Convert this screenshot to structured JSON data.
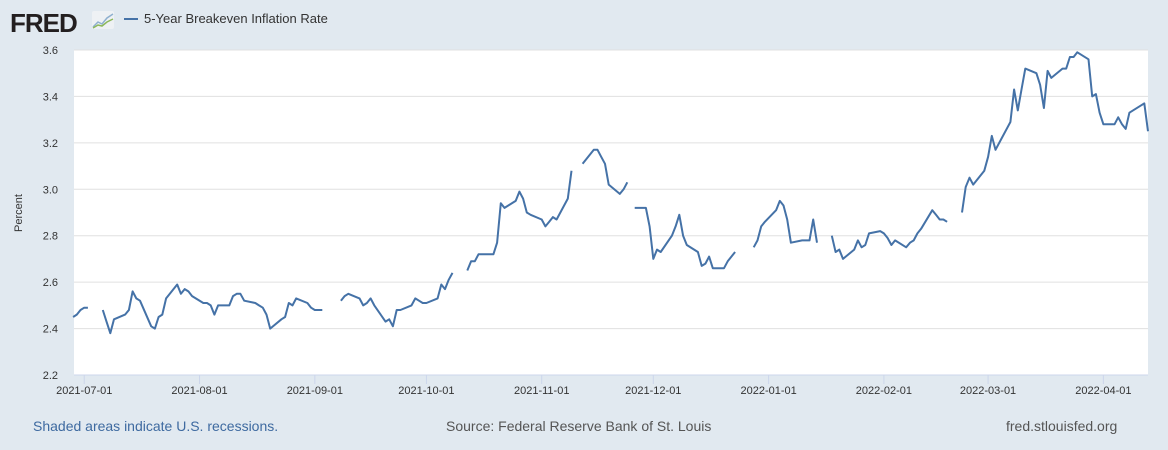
{
  "brand": {
    "logo_text": "FRED"
  },
  "footer": {
    "recessions_note": "Shaded areas indicate U.S. recessions.",
    "source": "Source: Federal Reserve Bank of St. Louis",
    "site": "fred.stlouisfed.org"
  },
  "colors": {
    "series": "#4572a7",
    "background": "#e1e9f0",
    "plot": "#ffffff",
    "grid": "#e0e0e0"
  },
  "chart_data": {
    "type": "line",
    "title": "",
    "xlabel": "",
    "ylabel": "Percent",
    "ylim": [
      2.2,
      3.6
    ],
    "xlim": [
      "2021-06-28T06:00:00",
      "2022-04-13T00:00:00"
    ],
    "yticks": [
      "2.2",
      "2.4",
      "2.6",
      "2.8",
      "3.0",
      "3.2",
      "3.4",
      "3.6"
    ],
    "xticks": [
      "2021-07-01",
      "2021-08-01",
      "2021-09-01",
      "2021-10-01",
      "2021-11-01",
      "2021-12-01",
      "2022-01-01",
      "2022-02-01",
      "2022-03-01",
      "2022-04-01"
    ],
    "grid": true,
    "legend_position": "top-left",
    "series": [
      {
        "name": "5-Year Breakeven Inflation Rate",
        "points": [
          [
            "2021-06-28",
            2.45
          ],
          [
            "2021-06-29",
            2.46
          ],
          [
            "2021-06-30",
            2.48
          ],
          [
            "2021-07-01",
            2.49
          ],
          [
            "2021-07-02",
            2.49
          ],
          [
            "2021-07-05",
            null
          ],
          [
            "2021-07-06",
            2.48
          ],
          [
            "2021-07-07",
            2.43
          ],
          [
            "2021-07-08",
            2.38
          ],
          [
            "2021-07-09",
            2.44
          ],
          [
            "2021-07-12",
            2.46
          ],
          [
            "2021-07-13",
            2.48
          ],
          [
            "2021-07-14",
            2.56
          ],
          [
            "2021-07-15",
            2.53
          ],
          [
            "2021-07-16",
            2.52
          ],
          [
            "2021-07-19",
            2.41
          ],
          [
            "2021-07-20",
            2.4
          ],
          [
            "2021-07-21",
            2.45
          ],
          [
            "2021-07-22",
            2.46
          ],
          [
            "2021-07-23",
            2.53
          ],
          [
            "2021-07-26",
            2.59
          ],
          [
            "2021-07-27",
            2.55
          ],
          [
            "2021-07-28",
            2.57
          ],
          [
            "2021-07-29",
            2.56
          ],
          [
            "2021-07-30",
            2.54
          ],
          [
            "2021-08-02",
            2.51
          ],
          [
            "2021-08-03",
            2.51
          ],
          [
            "2021-08-04",
            2.5
          ],
          [
            "2021-08-05",
            2.46
          ],
          [
            "2021-08-06",
            2.5
          ],
          [
            "2021-08-09",
            2.5
          ],
          [
            "2021-08-10",
            2.54
          ],
          [
            "2021-08-11",
            2.55
          ],
          [
            "2021-08-12",
            2.55
          ],
          [
            "2021-08-13",
            2.52
          ],
          [
            "2021-08-16",
            2.51
          ],
          [
            "2021-08-17",
            2.5
          ],
          [
            "2021-08-18",
            2.49
          ],
          [
            "2021-08-19",
            2.46
          ],
          [
            "2021-08-20",
            2.4
          ],
          [
            "2021-08-23",
            2.44
          ],
          [
            "2021-08-24",
            2.45
          ],
          [
            "2021-08-25",
            2.51
          ],
          [
            "2021-08-26",
            2.5
          ],
          [
            "2021-08-27",
            2.53
          ],
          [
            "2021-08-30",
            2.51
          ],
          [
            "2021-08-31",
            2.49
          ],
          [
            "2021-09-01",
            2.48
          ],
          [
            "2021-09-02",
            2.48
          ],
          [
            "2021-09-03",
            2.48
          ],
          [
            "2021-09-06",
            null
          ],
          [
            "2021-09-07",
            null
          ],
          [
            "2021-09-08",
            2.52
          ],
          [
            "2021-09-09",
            2.54
          ],
          [
            "2021-09-10",
            2.55
          ],
          [
            "2021-09-13",
            2.53
          ],
          [
            "2021-09-14",
            2.5
          ],
          [
            "2021-09-15",
            2.51
          ],
          [
            "2021-09-16",
            2.53
          ],
          [
            "2021-09-17",
            2.5
          ],
          [
            "2021-09-20",
            2.43
          ],
          [
            "2021-09-21",
            2.44
          ],
          [
            "2021-09-22",
            2.41
          ],
          [
            "2021-09-23",
            2.48
          ],
          [
            "2021-09-24",
            2.48
          ],
          [
            "2021-09-27",
            2.5
          ],
          [
            "2021-09-28",
            2.53
          ],
          [
            "2021-09-29",
            2.52
          ],
          [
            "2021-09-30",
            2.51
          ],
          [
            "2021-10-01",
            2.51
          ],
          [
            "2021-10-04",
            2.53
          ],
          [
            "2021-10-05",
            2.59
          ],
          [
            "2021-10-06",
            2.57
          ],
          [
            "2021-10-07",
            2.61
          ],
          [
            "2021-10-08",
            2.64
          ],
          [
            "2021-10-11",
            null
          ],
          [
            "2021-10-12",
            2.65
          ],
          [
            "2021-10-13",
            2.69
          ],
          [
            "2021-10-14",
            2.69
          ],
          [
            "2021-10-15",
            2.72
          ],
          [
            "2021-10-18",
            2.72
          ],
          [
            "2021-10-19",
            2.72
          ],
          [
            "2021-10-20",
            2.77
          ],
          [
            "2021-10-21",
            2.94
          ],
          [
            "2021-10-22",
            2.92
          ],
          [
            "2021-10-25",
            2.95
          ],
          [
            "2021-10-26",
            2.99
          ],
          [
            "2021-10-27",
            2.96
          ],
          [
            "2021-10-28",
            2.9
          ],
          [
            "2021-10-29",
            2.89
          ],
          [
            "2021-11-01",
            2.87
          ],
          [
            "2021-11-02",
            2.84
          ],
          [
            "2021-11-03",
            2.86
          ],
          [
            "2021-11-04",
            2.88
          ],
          [
            "2021-11-05",
            2.87
          ],
          [
            "2021-11-08",
            2.96
          ],
          [
            "2021-11-09",
            3.08
          ],
          [
            "2021-11-11",
            null
          ],
          [
            "2021-11-12",
            3.11
          ],
          [
            "2021-11-15",
            3.17
          ],
          [
            "2021-11-16",
            3.17
          ],
          [
            "2021-11-17",
            3.14
          ],
          [
            "2021-11-18",
            3.11
          ],
          [
            "2021-11-19",
            3.02
          ],
          [
            "2021-11-22",
            2.98
          ],
          [
            "2021-11-23",
            3.0
          ],
          [
            "2021-11-24",
            3.03
          ],
          [
            "2021-11-25",
            null
          ],
          [
            "2021-11-26",
            2.92
          ],
          [
            "2021-11-29",
            2.92
          ],
          [
            "2021-11-30",
            2.84
          ],
          [
            "2021-12-01",
            2.7
          ],
          [
            "2021-12-02",
            2.74
          ],
          [
            "2021-12-03",
            2.73
          ],
          [
            "2021-12-06",
            2.8
          ],
          [
            "2021-12-07",
            2.84
          ],
          [
            "2021-12-08",
            2.89
          ],
          [
            "2021-12-09",
            2.8
          ],
          [
            "2021-12-10",
            2.76
          ],
          [
            "2021-12-13",
            2.73
          ],
          [
            "2021-12-14",
            2.67
          ],
          [
            "2021-12-15",
            2.68
          ],
          [
            "2021-12-16",
            2.71
          ],
          [
            "2021-12-17",
            2.66
          ],
          [
            "2021-12-20",
            2.66
          ],
          [
            "2021-12-21",
            2.69
          ],
          [
            "2021-12-22",
            2.71
          ],
          [
            "2021-12-23",
            2.73
          ],
          [
            "2021-12-24",
            null
          ],
          [
            "2021-12-27",
            null
          ],
          [
            "2021-12-28",
            2.75
          ],
          [
            "2021-12-29",
            2.78
          ],
          [
            "2021-12-30",
            2.84
          ],
          [
            "2021-12-31",
            2.86
          ],
          [
            "2022-01-03",
            2.91
          ],
          [
            "2022-01-04",
            2.95
          ],
          [
            "2022-01-05",
            2.93
          ],
          [
            "2022-01-06",
            2.87
          ],
          [
            "2022-01-07",
            2.77
          ],
          [
            "2022-01-10",
            2.78
          ],
          [
            "2022-01-11",
            2.78
          ],
          [
            "2022-01-12",
            2.78
          ],
          [
            "2022-01-13",
            2.87
          ],
          [
            "2022-01-14",
            2.77
          ],
          [
            "2022-01-17",
            null
          ],
          [
            "2022-01-18",
            2.8
          ],
          [
            "2022-01-19",
            2.73
          ],
          [
            "2022-01-20",
            2.74
          ],
          [
            "2022-01-21",
            2.7
          ],
          [
            "2022-01-24",
            2.74
          ],
          [
            "2022-01-25",
            2.78
          ],
          [
            "2022-01-26",
            2.75
          ],
          [
            "2022-01-27",
            2.76
          ],
          [
            "2022-01-28",
            2.81
          ],
          [
            "2022-01-31",
            2.82
          ],
          [
            "2022-02-01",
            2.81
          ],
          [
            "2022-02-02",
            2.79
          ],
          [
            "2022-02-03",
            2.76
          ],
          [
            "2022-02-04",
            2.78
          ],
          [
            "2022-02-07",
            2.75
          ],
          [
            "2022-02-08",
            2.77
          ],
          [
            "2022-02-09",
            2.78
          ],
          [
            "2022-02-10",
            2.81
          ],
          [
            "2022-02-11",
            2.83
          ],
          [
            "2022-02-14",
            2.91
          ],
          [
            "2022-02-15",
            2.89
          ],
          [
            "2022-02-16",
            2.87
          ],
          [
            "2022-02-17",
            2.87
          ],
          [
            "2022-02-18",
            2.86
          ],
          [
            "2022-02-21",
            null
          ],
          [
            "2022-02-22",
            2.9
          ],
          [
            "2022-02-23",
            3.01
          ],
          [
            "2022-02-24",
            3.05
          ],
          [
            "2022-02-25",
            3.02
          ],
          [
            "2022-02-28",
            3.08
          ],
          [
            "2022-03-01",
            3.14
          ],
          [
            "2022-03-02",
            3.23
          ],
          [
            "2022-03-03",
            3.17
          ],
          [
            "2022-03-04",
            3.2
          ],
          [
            "2022-03-07",
            3.29
          ],
          [
            "2022-03-08",
            3.43
          ],
          [
            "2022-03-09",
            3.34
          ],
          [
            "2022-03-10",
            3.43
          ],
          [
            "2022-03-11",
            3.52
          ],
          [
            "2022-03-14",
            3.5
          ],
          [
            "2022-03-15",
            3.45
          ],
          [
            "2022-03-16",
            3.35
          ],
          [
            "2022-03-17",
            3.51
          ],
          [
            "2022-03-18",
            3.48
          ],
          [
            "2022-03-21",
            3.52
          ],
          [
            "2022-03-22",
            3.52
          ],
          [
            "2022-03-23",
            3.57
          ],
          [
            "2022-03-24",
            3.57
          ],
          [
            "2022-03-25",
            3.59
          ],
          [
            "2022-03-28",
            3.56
          ],
          [
            "2022-03-29",
            3.4
          ],
          [
            "2022-03-30",
            3.41
          ],
          [
            "2022-03-31",
            3.33
          ],
          [
            "2022-04-01",
            3.28
          ],
          [
            "2022-04-04",
            3.28
          ],
          [
            "2022-04-05",
            3.31
          ],
          [
            "2022-04-06",
            3.28
          ],
          [
            "2022-04-07",
            3.26
          ],
          [
            "2022-04-08",
            3.33
          ],
          [
            "2022-04-11",
            3.36
          ],
          [
            "2022-04-12",
            3.37
          ],
          [
            "2022-04-13",
            3.25
          ]
        ]
      }
    ]
  }
}
